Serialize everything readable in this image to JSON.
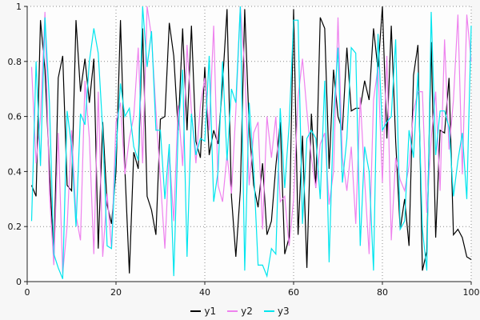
{
  "chart_data": {
    "type": "line",
    "title": "",
    "xlabel": "",
    "ylabel": "",
    "xlim": [
      0,
      100
    ],
    "ylim": [
      0,
      1
    ],
    "x_ticks": [
      "0",
      "20",
      "40",
      "60",
      "80",
      "100"
    ],
    "x_tick_values": [
      0,
      20,
      40,
      60,
      80,
      100
    ],
    "y_ticks": [
      "0",
      "0.2",
      "0.4",
      "0.6",
      "0.8",
      "1"
    ],
    "y_tick_values": [
      0,
      0.2,
      0.4,
      0.6,
      0.8,
      1
    ],
    "grid": true,
    "grid_style": "dotted",
    "legend_position": "bottom-center",
    "plot_bg": "#fdfdfd",
    "figure_bg": "#f7f7f7",
    "grid_color": "#8a8a8a",
    "axis_color": "#222222",
    "x": [
      1,
      2,
      3,
      4,
      5,
      6,
      7,
      8,
      9,
      10,
      11,
      12,
      13,
      14,
      15,
      16,
      17,
      18,
      19,
      20,
      21,
      22,
      23,
      24,
      25,
      26,
      27,
      28,
      29,
      30,
      31,
      32,
      33,
      34,
      35,
      36,
      37,
      38,
      39,
      40,
      41,
      42,
      43,
      44,
      45,
      46,
      47,
      48,
      49,
      50,
      51,
      52,
      53,
      54,
      55,
      56,
      57,
      58,
      59,
      60,
      61,
      62,
      63,
      64,
      65,
      66,
      67,
      68,
      69,
      70,
      71,
      72,
      73,
      74,
      75,
      76,
      77,
      78,
      79,
      80,
      81,
      82,
      83,
      84,
      85,
      86,
      87,
      88,
      89,
      90,
      91,
      92,
      93,
      94,
      95,
      96,
      97,
      98,
      99,
      100
    ],
    "series": [
      {
        "name": "y1",
        "color": "#000000",
        "values": [
          0.35,
          0.31,
          0.95,
          0.77,
          0.41,
          0.08,
          0.74,
          0.82,
          0.35,
          0.33,
          0.95,
          0.69,
          0.81,
          0.65,
          0.81,
          0.12,
          0.58,
          0.28,
          0.21,
          0.4,
          0.95,
          0.41,
          0.03,
          0.47,
          0.41,
          0.92,
          0.31,
          0.26,
          0.17,
          0.59,
          0.6,
          0.94,
          0.82,
          0.55,
          0.92,
          0.55,
          0.93,
          0.51,
          0.45,
          0.78,
          0.46,
          0.55,
          0.5,
          0.72,
          0.99,
          0.31,
          0.09,
          0.33,
          0.99,
          0.56,
          0.35,
          0.27,
          0.43,
          0.17,
          0.22,
          0.42,
          0.58,
          0.1,
          0.16,
          0.99,
          0.17,
          0.53,
          0.05,
          0.61,
          0.34,
          0.96,
          0.92,
          0.41,
          0.77,
          0.6,
          0.55,
          0.85,
          0.62,
          0.63,
          0.63,
          0.73,
          0.66,
          0.92,
          0.77,
          1.0,
          0.52,
          0.93,
          0.51,
          0.19,
          0.3,
          0.13,
          0.75,
          0.86,
          0.04,
          0.11,
          0.87,
          0.16,
          0.55,
          0.54,
          0.74,
          0.17,
          0.19,
          0.16,
          0.09,
          0.08
        ]
      },
      {
        "name": "y2",
        "color": "#EE82EE",
        "values": [
          0.78,
          0.43,
          0.6,
          0.98,
          0.32,
          0.06,
          0.54,
          0.03,
          0.2,
          0.55,
          0.24,
          0.15,
          0.73,
          0.52,
          0.1,
          0.69,
          0.09,
          0.32,
          0.12,
          0.58,
          0.65,
          0.39,
          0.52,
          0.6,
          0.85,
          0.43,
          1.0,
          0.89,
          0.62,
          0.37,
          0.12,
          0.47,
          0.22,
          0.64,
          0.42,
          0.86,
          0.62,
          0.43,
          0.64,
          0.74,
          0.55,
          0.93,
          0.35,
          0.29,
          0.46,
          0.32,
          0.62,
          1.0,
          0.77,
          0.35,
          0.54,
          0.58,
          0.19,
          0.6,
          0.45,
          0.6,
          0.29,
          0.31,
          0.13,
          0.3,
          0.67,
          0.81,
          0.62,
          0.45,
          0.34,
          0.5,
          0.54,
          0.28,
          0.4,
          0.96,
          0.45,
          0.33,
          0.49,
          0.21,
          0.67,
          0.37,
          0.1,
          0.66,
          0.78,
          0.36,
          0.82,
          0.15,
          0.45,
          0.37,
          0.33,
          0.42,
          0.62,
          0.69,
          0.69,
          0.25,
          0.52,
          0.69,
          0.33,
          0.88,
          0.48,
          0.66,
          0.97,
          0.39,
          0.97,
          0.8
        ]
      },
      {
        "name": "y3",
        "color": "#00E5EE",
        "values": [
          0.22,
          0.8,
          0.42,
          0.96,
          0.65,
          0.1,
          0.05,
          0.01,
          0.62,
          0.49,
          0.2,
          0.61,
          0.57,
          0.8,
          0.92,
          0.83,
          0.55,
          0.13,
          0.12,
          0.47,
          0.72,
          0.6,
          0.63,
          0.49,
          0.44,
          1.0,
          0.78,
          0.91,
          0.55,
          0.55,
          0.3,
          0.5,
          0.02,
          0.55,
          0.77,
          0.09,
          0.61,
          0.46,
          0.52,
          0.51,
          0.82,
          0.29,
          0.4,
          0.8,
          0.44,
          0.7,
          0.65,
          1.0,
          0.04,
          0.65,
          0.41,
          0.06,
          0.06,
          0.02,
          0.12,
          0.1,
          0.63,
          0.34,
          0.57,
          0.95,
          0.95,
          0.21,
          0.52,
          0.55,
          0.52,
          0.3,
          0.73,
          0.07,
          0.6,
          0.85,
          0.36,
          0.52,
          0.85,
          0.83,
          0.13,
          0.49,
          0.4,
          0.04,
          0.9,
          0.55,
          0.58,
          0.6,
          0.88,
          0.19,
          0.22,
          0.55,
          0.45,
          0.76,
          0.19,
          0.04,
          0.98,
          0.46,
          0.62,
          0.62,
          0.56,
          0.31,
          0.44,
          0.54,
          0.3,
          0.93
        ]
      }
    ]
  }
}
